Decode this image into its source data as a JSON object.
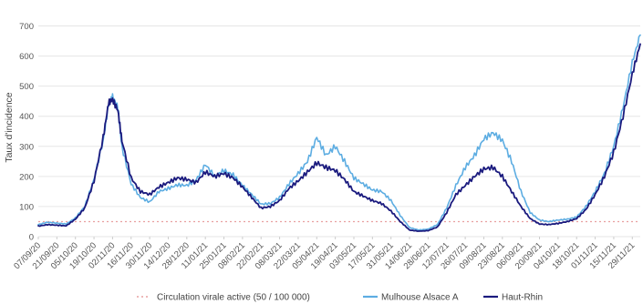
{
  "chart_data": {
    "type": "line",
    "title": "",
    "ylabel": "Taux d'incidence",
    "xlabel": "",
    "ylim": [
      0,
      750
    ],
    "yticks": [
      0,
      100,
      200,
      300,
      400,
      500,
      600,
      700
    ],
    "grid": true,
    "legend_position": "bottom",
    "x_ticks": [
      "07/09/20",
      "21/09/20",
      "05/10/20",
      "19/10/20",
      "02/11/20",
      "16/11/20",
      "30/11/20",
      "14/12/20",
      "28/12/20",
      "11/01/21",
      "25/01/21",
      "08/02/21",
      "22/02/21",
      "08/03/21",
      "22/03/21",
      "05/04/21",
      "19/04/21",
      "03/05/21",
      "17/05/21",
      "31/05/21",
      "14/06/21",
      "28/06/21",
      "12/07/21",
      "26/07/21",
      "09/08/21",
      "23/08/21",
      "06/09/21",
      "20/09/21",
      "04/10/21",
      "18/10/21",
      "01/11/21",
      "15/11/21",
      "29/11/21"
    ],
    "x_range": [
      "07/09/20",
      "05/12/21"
    ],
    "threshold": {
      "name": "Circulation virale active (50 / 100 000)",
      "value": 50,
      "color": "#e9a0a0"
    },
    "series": [
      {
        "name": "Mulhouse Alsace A",
        "color": "#5dade2",
        "points": [
          [
            "07/09/20",
            40
          ],
          [
            "14/09/20",
            48
          ],
          [
            "21/09/20",
            45
          ],
          [
            "28/09/20",
            42
          ],
          [
            "05/10/20",
            62
          ],
          [
            "12/10/20",
            100
          ],
          [
            "19/10/20",
            190
          ],
          [
            "26/10/20",
            320
          ],
          [
            "30/10/20",
            440
          ],
          [
            "02/11/20",
            465
          ],
          [
            "06/11/20",
            430
          ],
          [
            "09/11/20",
            300
          ],
          [
            "16/11/20",
            175
          ],
          [
            "23/11/20",
            130
          ],
          [
            "30/11/20",
            115
          ],
          [
            "07/12/20",
            150
          ],
          [
            "14/12/20",
            160
          ],
          [
            "21/12/20",
            172
          ],
          [
            "28/12/20",
            170
          ],
          [
            "04/01/21",
            188
          ],
          [
            "11/01/21",
            240
          ],
          [
            "18/01/21",
            200
          ],
          [
            "25/01/21",
            220
          ],
          [
            "01/02/21",
            205
          ],
          [
            "08/02/21",
            170
          ],
          [
            "15/02/21",
            140
          ],
          [
            "22/02/21",
            108
          ],
          [
            "01/03/21",
            110
          ],
          [
            "08/03/21",
            130
          ],
          [
            "15/03/21",
            175
          ],
          [
            "22/03/21",
            210
          ],
          [
            "29/03/21",
            250
          ],
          [
            "05/04/21",
            330
          ],
          [
            "12/04/21",
            270
          ],
          [
            "19/04/21",
            300
          ],
          [
            "26/04/21",
            250
          ],
          [
            "03/05/21",
            195
          ],
          [
            "10/05/21",
            175
          ],
          [
            "17/05/21",
            155
          ],
          [
            "24/05/21",
            150
          ],
          [
            "31/05/21",
            120
          ],
          [
            "07/06/21",
            70
          ],
          [
            "14/06/21",
            30
          ],
          [
            "21/06/21",
            22
          ],
          [
            "28/06/21",
            25
          ],
          [
            "05/07/21",
            40
          ],
          [
            "12/07/21",
            95
          ],
          [
            "19/07/21",
            170
          ],
          [
            "26/07/21",
            230
          ],
          [
            "02/08/21",
            270
          ],
          [
            "09/08/21",
            325
          ],
          [
            "16/08/21",
            345
          ],
          [
            "23/08/21",
            320
          ],
          [
            "30/08/21",
            250
          ],
          [
            "06/09/21",
            150
          ],
          [
            "13/09/21",
            80
          ],
          [
            "20/09/21",
            55
          ],
          [
            "27/09/21",
            50
          ],
          [
            "04/10/21",
            55
          ],
          [
            "11/10/21",
            58
          ],
          [
            "18/10/21",
            65
          ],
          [
            "25/10/21",
            100
          ],
          [
            "01/11/21",
            150
          ],
          [
            "08/11/21",
            210
          ],
          [
            "15/11/21",
            300
          ],
          [
            "22/11/21",
            430
          ],
          [
            "29/11/21",
            580
          ],
          [
            "05/12/21",
            670
          ]
        ]
      },
      {
        "name": "Haut-Rhin",
        "color": "#1a1a7e",
        "points": [
          [
            "07/09/20",
            35
          ],
          [
            "14/09/20",
            40
          ],
          [
            "21/09/20",
            38
          ],
          [
            "28/09/20",
            36
          ],
          [
            "05/10/20",
            58
          ],
          [
            "12/10/20",
            95
          ],
          [
            "19/10/20",
            185
          ],
          [
            "26/10/20",
            330
          ],
          [
            "30/10/20",
            445
          ],
          [
            "02/11/20",
            455
          ],
          [
            "06/11/20",
            420
          ],
          [
            "09/11/20",
            320
          ],
          [
            "16/11/20",
            195
          ],
          [
            "23/11/20",
            150
          ],
          [
            "30/11/20",
            140
          ],
          [
            "07/12/20",
            165
          ],
          [
            "14/12/20",
            180
          ],
          [
            "21/12/20",
            195
          ],
          [
            "28/12/20",
            190
          ],
          [
            "04/01/21",
            180
          ],
          [
            "11/01/21",
            215
          ],
          [
            "18/01/21",
            200
          ],
          [
            "25/01/21",
            210
          ],
          [
            "01/02/21",
            195
          ],
          [
            "08/02/21",
            165
          ],
          [
            "15/02/21",
            130
          ],
          [
            "22/02/21",
            95
          ],
          [
            "01/03/21",
            100
          ],
          [
            "08/03/21",
            120
          ],
          [
            "15/03/21",
            160
          ],
          [
            "22/03/21",
            185
          ],
          [
            "29/03/21",
            215
          ],
          [
            "05/04/21",
            245
          ],
          [
            "12/04/21",
            230
          ],
          [
            "19/04/21",
            220
          ],
          [
            "26/04/21",
            190
          ],
          [
            "03/05/21",
            150
          ],
          [
            "10/05/21",
            135
          ],
          [
            "17/05/21",
            120
          ],
          [
            "24/05/21",
            110
          ],
          [
            "31/05/21",
            85
          ],
          [
            "07/06/21",
            50
          ],
          [
            "14/06/21",
            22
          ],
          [
            "21/06/21",
            18
          ],
          [
            "28/06/21",
            20
          ],
          [
            "05/07/21",
            32
          ],
          [
            "12/07/21",
            80
          ],
          [
            "19/07/21",
            140
          ],
          [
            "26/07/21",
            170
          ],
          [
            "02/08/21",
            200
          ],
          [
            "09/08/21",
            225
          ],
          [
            "16/08/21",
            230
          ],
          [
            "23/08/21",
            200
          ],
          [
            "30/08/21",
            150
          ],
          [
            "06/09/21",
            100
          ],
          [
            "13/09/21",
            60
          ],
          [
            "20/09/21",
            42
          ],
          [
            "27/09/21",
            40
          ],
          [
            "04/10/21",
            44
          ],
          [
            "11/10/21",
            50
          ],
          [
            "18/10/21",
            60
          ],
          [
            "25/10/21",
            90
          ],
          [
            "01/11/21",
            140
          ],
          [
            "08/11/21",
            200
          ],
          [
            "15/11/21",
            280
          ],
          [
            "22/11/21",
            400
          ],
          [
            "29/11/21",
            540
          ],
          [
            "05/12/21",
            640
          ]
        ]
      }
    ]
  },
  "legend": {
    "threshold_label": "Circulation virale active (50 / 100 000)",
    "series1_label": "Mulhouse Alsace A",
    "series2_label": "Haut-Rhin"
  }
}
